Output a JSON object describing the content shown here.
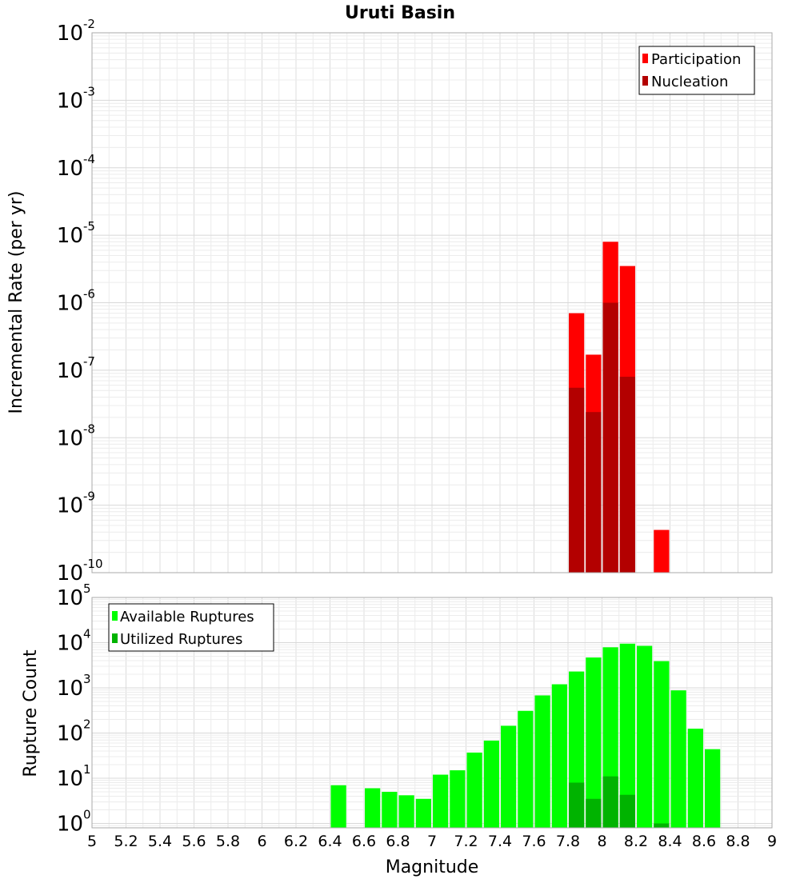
{
  "chart_data": [
    {
      "type": "bar",
      "title": "Uruti Basin",
      "xlabel": "Magnitude",
      "ylabel": "Incremental Rate (per yr)",
      "yscale": "log",
      "ylim": [
        1e-10,
        0.01
      ],
      "xlim": [
        5,
        9
      ],
      "bin_width": 0.1,
      "legend_position": "top-right",
      "series": [
        {
          "name": "Participation",
          "color": "#ff0000",
          "points": [
            {
              "x": 7.85,
              "y": 7e-07
            },
            {
              "x": 7.95,
              "y": 1.7e-07
            },
            {
              "x": 8.05,
              "y": 8e-06
            },
            {
              "x": 8.15,
              "y": 3.5e-06
            },
            {
              "x": 8.35,
              "y": 4.3e-10
            }
          ]
        },
        {
          "name": "Nucleation",
          "color": "#b30000",
          "points": [
            {
              "x": 7.85,
              "y": 5.5e-08
            },
            {
              "x": 7.95,
              "y": 2.4e-08
            },
            {
              "x": 8.05,
              "y": 1e-06
            },
            {
              "x": 8.15,
              "y": 8e-08
            }
          ]
        }
      ]
    },
    {
      "type": "bar",
      "title": "",
      "xlabel": "Magnitude",
      "ylabel": "Rupture Count",
      "yscale": "log",
      "ylim": [
        0.8,
        100000
      ],
      "xlim": [
        5,
        9
      ],
      "bin_width": 0.1,
      "legend_position": "top-left",
      "series": [
        {
          "name": "Available Ruptures",
          "color": "#00ff00",
          "points": [
            {
              "x": 6.45,
              "y": 7
            },
            {
              "x": 6.65,
              "y": 6
            },
            {
              "x": 6.75,
              "y": 5
            },
            {
              "x": 6.85,
              "y": 4.2
            },
            {
              "x": 6.95,
              "y": 3.5
            },
            {
              "x": 7.05,
              "y": 12
            },
            {
              "x": 7.15,
              "y": 15
            },
            {
              "x": 7.25,
              "y": 37
            },
            {
              "x": 7.35,
              "y": 68
            },
            {
              "x": 7.45,
              "y": 145
            },
            {
              "x": 7.55,
              "y": 310
            },
            {
              "x": 7.65,
              "y": 680
            },
            {
              "x": 7.75,
              "y": 1200
            },
            {
              "x": 7.85,
              "y": 2300
            },
            {
              "x": 7.95,
              "y": 4700
            },
            {
              "x": 8.05,
              "y": 7900
            },
            {
              "x": 8.15,
              "y": 9500
            },
            {
              "x": 8.25,
              "y": 8500
            },
            {
              "x": 8.35,
              "y": 3900
            },
            {
              "x": 8.45,
              "y": 880
            },
            {
              "x": 8.55,
              "y": 125
            },
            {
              "x": 8.65,
              "y": 44
            }
          ]
        },
        {
          "name": "Utilized Ruptures",
          "color": "#00b300",
          "points": [
            {
              "x": 7.85,
              "y": 8
            },
            {
              "x": 7.95,
              "y": 3.5
            },
            {
              "x": 8.05,
              "y": 11
            },
            {
              "x": 8.15,
              "y": 4.3
            },
            {
              "x": 8.35,
              "y": 1
            }
          ]
        }
      ]
    }
  ],
  "x_ticks": [
    "5",
    "5.2",
    "5.4",
    "5.6",
    "5.8",
    "6",
    "6.2",
    "6.4",
    "6.6",
    "6.8",
    "7",
    "7.2",
    "7.4",
    "7.6",
    "7.8",
    "8",
    "8.2",
    "8.4",
    "8.6",
    "8.8",
    "9"
  ],
  "top_y_ticks": [
    {
      "base": "10",
      "exp": "-2"
    },
    {
      "base": "10",
      "exp": "-3"
    },
    {
      "base": "10",
      "exp": "-4"
    },
    {
      "base": "10",
      "exp": "-5"
    },
    {
      "base": "10",
      "exp": "-6"
    },
    {
      "base": "10",
      "exp": "-7"
    },
    {
      "base": "10",
      "exp": "-8"
    },
    {
      "base": "10",
      "exp": "-9"
    },
    {
      "base": "10",
      "exp": "-10"
    }
  ],
  "bottom_y_ticks": [
    {
      "base": "10",
      "exp": "5"
    },
    {
      "base": "10",
      "exp": "4"
    },
    {
      "base": "10",
      "exp": "3"
    },
    {
      "base": "10",
      "exp": "2"
    },
    {
      "base": "10",
      "exp": "1"
    },
    {
      "base": "10",
      "exp": "0"
    }
  ]
}
